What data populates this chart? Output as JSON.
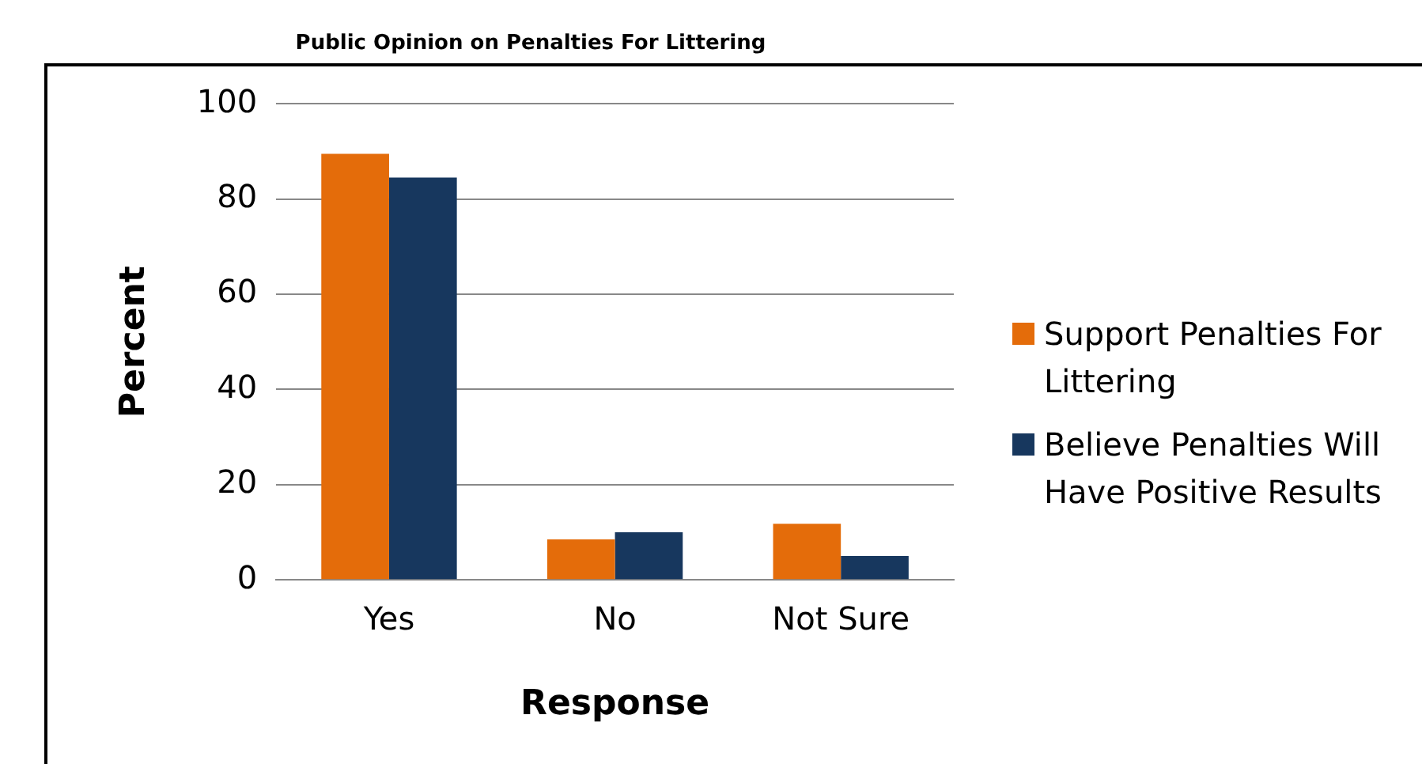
{
  "chart_data": {
    "type": "bar",
    "title": "Public Opinion on Penalties For Littering",
    "xlabel": "Response",
    "ylabel": "Percent",
    "categories": [
      "Yes",
      "No",
      "Not Sure"
    ],
    "series": [
      {
        "name": "Support Penalties For Littering",
        "color": "#e46c0a",
        "values": [
          89.5,
          8.5,
          11.8
        ]
      },
      {
        "name": "Believe Penalties Will Have Positive Results",
        "color": "#17375e",
        "values": [
          84.5,
          10,
          5
        ]
      }
    ],
    "ylim": [
      0,
      100
    ],
    "yticks": [
      0,
      20,
      40,
      60,
      80,
      100
    ],
    "grid": "y",
    "legend": "right"
  }
}
